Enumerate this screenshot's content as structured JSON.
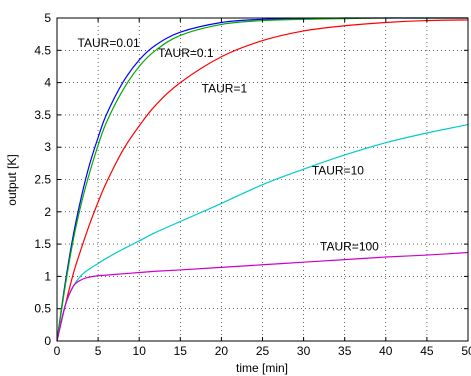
{
  "chart_data": {
    "type": "line",
    "xlabel": "time [min]",
    "ylabel": "output [K]",
    "xlim": [
      0,
      50
    ],
    "ylim": [
      0,
      5
    ],
    "grid": true,
    "x_ticks": [
      0,
      5,
      10,
      15,
      20,
      25,
      30,
      35,
      40,
      45,
      50
    ],
    "y_ticks": [
      0,
      0.5,
      1,
      1.5,
      2,
      2.5,
      3,
      3.5,
      4,
      4.5,
      5
    ],
    "x": [
      0,
      1,
      2,
      3,
      4,
      5,
      6,
      8,
      10,
      12,
      15,
      20,
      25,
      30,
      35,
      40,
      45,
      50
    ],
    "series": [
      {
        "name": "TAUR=0.01",
        "color": "#0000ff",
        "values": [
          0,
          0.9,
          1.65,
          2.25,
          2.75,
          3.15,
          3.5,
          4.0,
          4.35,
          4.58,
          4.78,
          4.93,
          4.98,
          4.99,
          5.0,
          5.0,
          5.0,
          5.0
        ]
      },
      {
        "name": "TAUR=0.1",
        "color": "#00aa00",
        "values": [
          0,
          0.85,
          1.58,
          2.15,
          2.62,
          3.03,
          3.38,
          3.88,
          4.25,
          4.5,
          4.73,
          4.9,
          4.96,
          4.98,
          4.99,
          5.0,
          5.0,
          5.0
        ]
      },
      {
        "name": "TAUR=1",
        "color": "#ff0000",
        "values": [
          0,
          0.55,
          1.05,
          1.45,
          1.82,
          2.15,
          2.45,
          2.95,
          3.33,
          3.65,
          4.0,
          4.4,
          4.65,
          4.8,
          4.88,
          4.93,
          4.96,
          4.97
        ]
      },
      {
        "name": "TAUR=10",
        "color": "#00cccc",
        "values": [
          0,
          0.55,
          0.85,
          1.02,
          1.12,
          1.2,
          1.28,
          1.42,
          1.55,
          1.68,
          1.85,
          2.13,
          2.42,
          2.66,
          2.88,
          3.07,
          3.22,
          3.35
        ]
      },
      {
        "name": "TAUR=100",
        "color": "#cc00cc",
        "values": [
          0,
          0.55,
          0.85,
          0.95,
          0.99,
          1.01,
          1.02,
          1.04,
          1.06,
          1.08,
          1.1,
          1.14,
          1.18,
          1.22,
          1.26,
          1.3,
          1.33,
          1.37
        ]
      }
    ],
    "annotations": [
      {
        "text": "TAUR=0.01",
        "x": 2.5,
        "y": 4.55
      },
      {
        "text": "TAUR=0.1",
        "x": 12.3,
        "y": 4.4
      },
      {
        "text": "TAUR=1",
        "x": 17.6,
        "y": 3.85
      },
      {
        "text": "TAUR=10",
        "x": 31,
        "y": 2.58
      },
      {
        "text": "TAUR=100",
        "x": 32,
        "y": 1.4
      }
    ]
  }
}
